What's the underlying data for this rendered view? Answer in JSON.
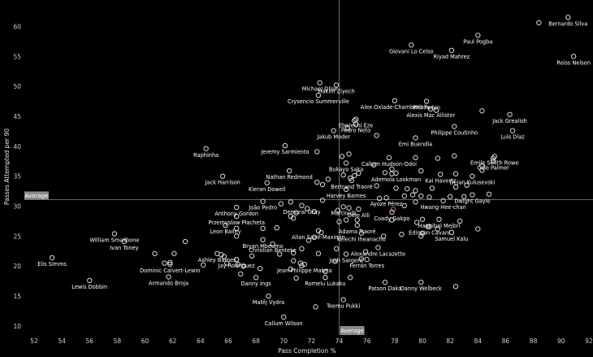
{
  "chart_data": {
    "type": "scatter",
    "xlabel": "Pass Completion %",
    "ylabel": "Passes Attempted per 90",
    "xlim": [
      51.3,
      92.3
    ],
    "ylim": [
      8.5,
      64.4
    ],
    "xticks": [
      52,
      54,
      56,
      58,
      60,
      62,
      64,
      66,
      68,
      70,
      72,
      74,
      76,
      78,
      80,
      82,
      84,
      86,
      88,
      90,
      92
    ],
    "yticks": [
      10,
      15,
      20,
      25,
      30,
      35,
      40,
      45,
      50,
      55,
      60
    ],
    "reference_lines": {
      "x": {
        "value": 74.0,
        "label": "Average"
      },
      "y": {
        "value": 31.1,
        "label": "Average"
      }
    },
    "colors": {
      "background": "#000000",
      "point": "#d8d8d8",
      "highlight": "#e8505b",
      "refline": "#6e6e6e"
    },
    "labeled_points": [
      {
        "name": "Bernardo Silva",
        "x": 90.5,
        "y": 61.5
      },
      {
        "name": "Paul Pogba",
        "x": 84.0,
        "y": 58.5
      },
      {
        "name": "Giovani Lo Celso",
        "x": 79.2,
        "y": 56.9
      },
      {
        "name": "Riyad Mahrez",
        "x": 82.1,
        "y": 56.0
      },
      {
        "name": "Reiss Nelson",
        "x": 90.9,
        "y": 55.0
      },
      {
        "name": "Michael Olise",
        "x": 72.6,
        "y": 50.6
      },
      {
        "name": "Hakim Ziyech",
        "x": 73.8,
        "y": 50.2
      },
      {
        "name": "Crysencio Summerville",
        "x": 72.5,
        "y": 48.5
      },
      {
        "name": "Phil Foden",
        "x": 80.3,
        "y": 47.5
      },
      {
        "name": "Alex Oxlade-Chamberlain",
        "x": 78.0,
        "y": 47.6
      },
      {
        "name": "Jack Grealish",
        "x": 86.3,
        "y": 45.3
      },
      {
        "name": "Alexis Mac Allister",
        "x": 80.6,
        "y": 46.2
      },
      {
        "name": "Eberechi Eze",
        "x": 75.2,
        "y": 44.5
      },
      {
        "name": "Pedro Neto",
        "x": 75.2,
        "y": 43.7
      },
      {
        "name": "Philippe Coutinho",
        "x": 82.3,
        "y": 43.3
      },
      {
        "name": "Luis Díaz",
        "x": 86.5,
        "y": 42.6
      },
      {
        "name": "Jakub Moder",
        "x": 73.6,
        "y": 42.6
      },
      {
        "name": "Emi Buendía",
        "x": 79.5,
        "y": 41.4
      },
      {
        "name": "Raphinha",
        "x": 64.4,
        "y": 39.6
      },
      {
        "name": "Jeremy Sarmiento",
        "x": 70.1,
        "y": 40.1
      },
      {
        "name": "Callum Hudson-Odoi",
        "x": 77.6,
        "y": 38.1
      },
      {
        "name": "Emile Smith Rowe",
        "x": 85.2,
        "y": 38.3
      },
      {
        "name": "Cole Palmer",
        "x": 85.1,
        "y": 37.5
      },
      {
        "name": "Bukayo Saka",
        "x": 74.5,
        "y": 37.2
      },
      {
        "name": "Nathan Redmond",
        "x": 70.4,
        "y": 35.9
      },
      {
        "name": "Ademola Lookman",
        "x": 78.1,
        "y": 35.5
      },
      {
        "name": "Kai Havertz",
        "x": 81.3,
        "y": 35.3
      },
      {
        "name": "Dejan Kulusevski",
        "x": 83.6,
        "y": 35.0
      },
      {
        "name": "Jack Harrison",
        "x": 65.6,
        "y": 35.0
      },
      {
        "name": "Bertrand Traoré",
        "x": 74.9,
        "y": 34.3
      },
      {
        "name": "Kieran Dowell",
        "x": 68.8,
        "y": 33.9
      },
      {
        "name": "Harvey Barnes",
        "x": 74.5,
        "y": 32.8
      },
      {
        "name": "Dwight Gayle",
        "x": 83.6,
        "y": 31.9
      },
      {
        "name": "Ayoze Pérez",
        "x": 77.4,
        "y": 31.4
      },
      {
        "name": "Hwang Hee-chan",
        "x": 81.5,
        "y": 30.9
      },
      {
        "name": "João Pedro",
        "x": 68.5,
        "y": 30.8
      },
      {
        "name": "Demarai Gray",
        "x": 71.3,
        "y": 30.1
      },
      {
        "name": "Anthony Gordon",
        "x": 66.6,
        "y": 29.8
      },
      {
        "name": "Martinelli",
        "x": 74.3,
        "y": 29.9
      },
      {
        "name": "Dele Alli",
        "x": 75.4,
        "y": 29.5
      },
      {
        "name": "Coady Gakpo",
        "x": 77.8,
        "y": 29.0
      },
      {
        "name": "Przemysław Płacheta",
        "x": 66.6,
        "y": 28.3
      },
      {
        "name": "Hannibal Mejbri",
        "x": 81.2,
        "y": 27.8
      },
      {
        "name": "Leon Bailey",
        "x": 65.8,
        "y": 26.8
      },
      {
        "name": "Adama Traoré",
        "x": 75.3,
        "y": 26.8
      },
      {
        "name": "Edinson Cavani",
        "x": 80.5,
        "y": 26.6
      },
      {
        "name": "Allan Saint-Maximin",
        "x": 72.5,
        "y": 25.9
      },
      {
        "name": "Kelechi Iheanacho",
        "x": 75.6,
        "y": 25.5
      },
      {
        "name": "Samuel Kalu",
        "x": 82.1,
        "y": 25.6
      },
      {
        "name": "William Smallbone",
        "x": 57.8,
        "y": 25.4
      },
      {
        "name": "Bryan Mbeumo",
        "x": 68.5,
        "y": 24.4
      },
      {
        "name": "Christian Benteke",
        "x": 69.2,
        "y": 23.7
      },
      {
        "name": "Ivan Toney",
        "x": 58.5,
        "y": 24.1
      },
      {
        "name": "Alexandre Lacazette",
        "x": 76.8,
        "y": 23.1
      },
      {
        "name": "Ashley Barnes",
        "x": 65.2,
        "y": 22.1
      },
      {
        "name": "Josh Sargent",
        "x": 74.5,
        "y": 22.0
      },
      {
        "name": "Elis Simms",
        "x": 53.3,
        "y": 21.4
      },
      {
        "name": "Jay Rodriguez",
        "x": 66.6,
        "y": 21.1
      },
      {
        "name": "Ferrán Torres",
        "x": 76.0,
        "y": 21.1
      },
      {
        "name": "Dominic Calvert-Lewin",
        "x": 61.8,
        "y": 20.3
      },
      {
        "name": "Jean-Philippe Mateta",
        "x": 71.5,
        "y": 20.3
      },
      {
        "name": "Armando Broja",
        "x": 61.7,
        "y": 18.2
      },
      {
        "name": "Lewis Dobbin",
        "x": 56.0,
        "y": 17.6
      },
      {
        "name": "Danny Ings",
        "x": 68.0,
        "y": 18.1
      },
      {
        "name": "Romelu Lukaku",
        "x": 73.0,
        "y": 18.1
      },
      {
        "name": "Patson Daka",
        "x": 77.3,
        "y": 17.3
      },
      {
        "name": "Danny Welbeck",
        "x": 79.9,
        "y": 17.3
      },
      {
        "name": "Matěj Vydra",
        "x": 68.9,
        "y": 15.0
      },
      {
        "name": "Teemu Pukki",
        "x": 74.3,
        "y": 14.4
      },
      {
        "name": "Callum Wilson",
        "x": 70.0,
        "y": 11.5
      }
    ],
    "unlabeled_points": [
      {
        "x": 88.4,
        "y": 60.6
      },
      {
        "x": 84.3,
        "y": 45.9
      },
      {
        "x": 81.0,
        "y": 46.0
      },
      {
        "x": 75.1,
        "y": 44.3
      },
      {
        "x": 74.6,
        "y": 43.0
      },
      {
        "x": 76.7,
        "y": 41.8
      },
      {
        "x": 74.7,
        "y": 38.7
      },
      {
        "x": 74.2,
        "y": 38.3
      },
      {
        "x": 72.4,
        "y": 39.1
      },
      {
        "x": 79.5,
        "y": 38.1
      },
      {
        "x": 81.1,
        "y": 38.0
      },
      {
        "x": 82.3,
        "y": 38.4
      },
      {
        "x": 85.1,
        "y": 38.0
      },
      {
        "x": 76.5,
        "y": 36.9
      },
      {
        "x": 77.8,
        "y": 36.2
      },
      {
        "x": 77.3,
        "y": 35.6
      },
      {
        "x": 77.8,
        "y": 35.4
      },
      {
        "x": 79.9,
        "y": 35.9
      },
      {
        "x": 82.4,
        "y": 35.4
      },
      {
        "x": 84.3,
        "y": 36.7
      },
      {
        "x": 84.3,
        "y": 36.0
      },
      {
        "x": 74.3,
        "y": 35.2
      },
      {
        "x": 75.4,
        "y": 35.5
      },
      {
        "x": 75.1,
        "y": 35.1
      },
      {
        "x": 74.8,
        "y": 34.7
      },
      {
        "x": 73.2,
        "y": 34.5
      },
      {
        "x": 72.4,
        "y": 34.0
      },
      {
        "x": 72.8,
        "y": 33.6
      },
      {
        "x": 76.7,
        "y": 33.4
      },
      {
        "x": 78.1,
        "y": 33.0
      },
      {
        "x": 78.9,
        "y": 32.9
      },
      {
        "x": 79.5,
        "y": 32.6
      },
      {
        "x": 80.7,
        "y": 33.0
      },
      {
        "x": 82.4,
        "y": 33.2
      },
      {
        "x": 83.2,
        "y": 33.5
      },
      {
        "x": 84.8,
        "y": 32.0
      },
      {
        "x": 78.7,
        "y": 31.7
      },
      {
        "x": 79.3,
        "y": 31.9
      },
      {
        "x": 79.9,
        "y": 31.7
      },
      {
        "x": 80.5,
        "y": 31.5
      },
      {
        "x": 82.0,
        "y": 31.6
      },
      {
        "x": 83.0,
        "y": 31.6
      },
      {
        "x": 76.9,
        "y": 31.3
      },
      {
        "x": 72.8,
        "y": 31.0
      },
      {
        "x": 70.5,
        "y": 30.7
      },
      {
        "x": 69.8,
        "y": 30.4
      },
      {
        "x": 71.7,
        "y": 29.6
      },
      {
        "x": 74.7,
        "y": 29.7
      },
      {
        "x": 78.7,
        "y": 30.1
      },
      {
        "x": 79.5,
        "y": 30.7
      },
      {
        "x": 73.9,
        "y": 29.3
      },
      {
        "x": 70.9,
        "y": 28.9
      },
      {
        "x": 70.5,
        "y": 28.3
      },
      {
        "x": 70.7,
        "y": 28.0
      },
      {
        "x": 72.2,
        "y": 29.1
      },
      {
        "x": 75.3,
        "y": 27.7
      },
      {
        "x": 77.8,
        "y": 27.7
      },
      {
        "x": 74.5,
        "y": 27.7
      },
      {
        "x": 74.0,
        "y": 27.4
      },
      {
        "x": 80.0,
        "y": 27.8
      },
      {
        "x": 79.6,
        "y": 27.3
      },
      {
        "x": 82.7,
        "y": 27.5
      },
      {
        "x": 80.4,
        "y": 26.6
      },
      {
        "x": 81.1,
        "y": 26.2
      },
      {
        "x": 84.0,
        "y": 26.2
      },
      {
        "x": 69.5,
        "y": 26.4
      },
      {
        "x": 72.7,
        "y": 25.6
      },
      {
        "x": 72.2,
        "y": 24.8
      },
      {
        "x": 77.2,
        "y": 25.0
      },
      {
        "x": 79.9,
        "y": 25.0
      },
      {
        "x": 78.5,
        "y": 25.3
      },
      {
        "x": 80.0,
        "y": 25.5
      },
      {
        "x": 66.6,
        "y": 26.3
      },
      {
        "x": 68.5,
        "y": 26.3
      },
      {
        "x": 66.6,
        "y": 25.0
      },
      {
        "x": 71.8,
        "y": 24.3
      },
      {
        "x": 62.9,
        "y": 24.1
      },
      {
        "x": 71.3,
        "y": 22.9
      },
      {
        "x": 70.7,
        "y": 22.2
      },
      {
        "x": 69.7,
        "y": 22.0
      },
      {
        "x": 73.8,
        "y": 22.9
      },
      {
        "x": 72.5,
        "y": 22.1
      },
      {
        "x": 75.9,
        "y": 22.4
      },
      {
        "x": 60.7,
        "y": 22.1
      },
      {
        "x": 62.1,
        "y": 22.1
      },
      {
        "x": 65.5,
        "y": 21.9
      },
      {
        "x": 65.7,
        "y": 21.6
      },
      {
        "x": 67.7,
        "y": 21.7
      },
      {
        "x": 70.7,
        "y": 20.9
      },
      {
        "x": 71.2,
        "y": 20.5
      },
      {
        "x": 73.7,
        "y": 20.8
      },
      {
        "x": 75.6,
        "y": 21.2
      },
      {
        "x": 61.4,
        "y": 20.5
      },
      {
        "x": 61.8,
        "y": 20.6
      },
      {
        "x": 64.2,
        "y": 20.2
      },
      {
        "x": 65.9,
        "y": 20.5
      },
      {
        "x": 66.7,
        "y": 20.3
      },
      {
        "x": 67.1,
        "y": 20.0
      },
      {
        "x": 71.3,
        "y": 20.1
      },
      {
        "x": 68.3,
        "y": 19.6
      },
      {
        "x": 70.5,
        "y": 19.5
      },
      {
        "x": 73.0,
        "y": 19.1
      },
      {
        "x": 66.9,
        "y": 18.7
      },
      {
        "x": 70.9,
        "y": 18.0
      },
      {
        "x": 74.8,
        "y": 18.1
      },
      {
        "x": 82.4,
        "y": 16.6
      },
      {
        "x": 72.3,
        "y": 13.2
      }
    ],
    "highlighted_points": [
      {
        "x": 77.9,
        "y": 29.5
      }
    ]
  }
}
